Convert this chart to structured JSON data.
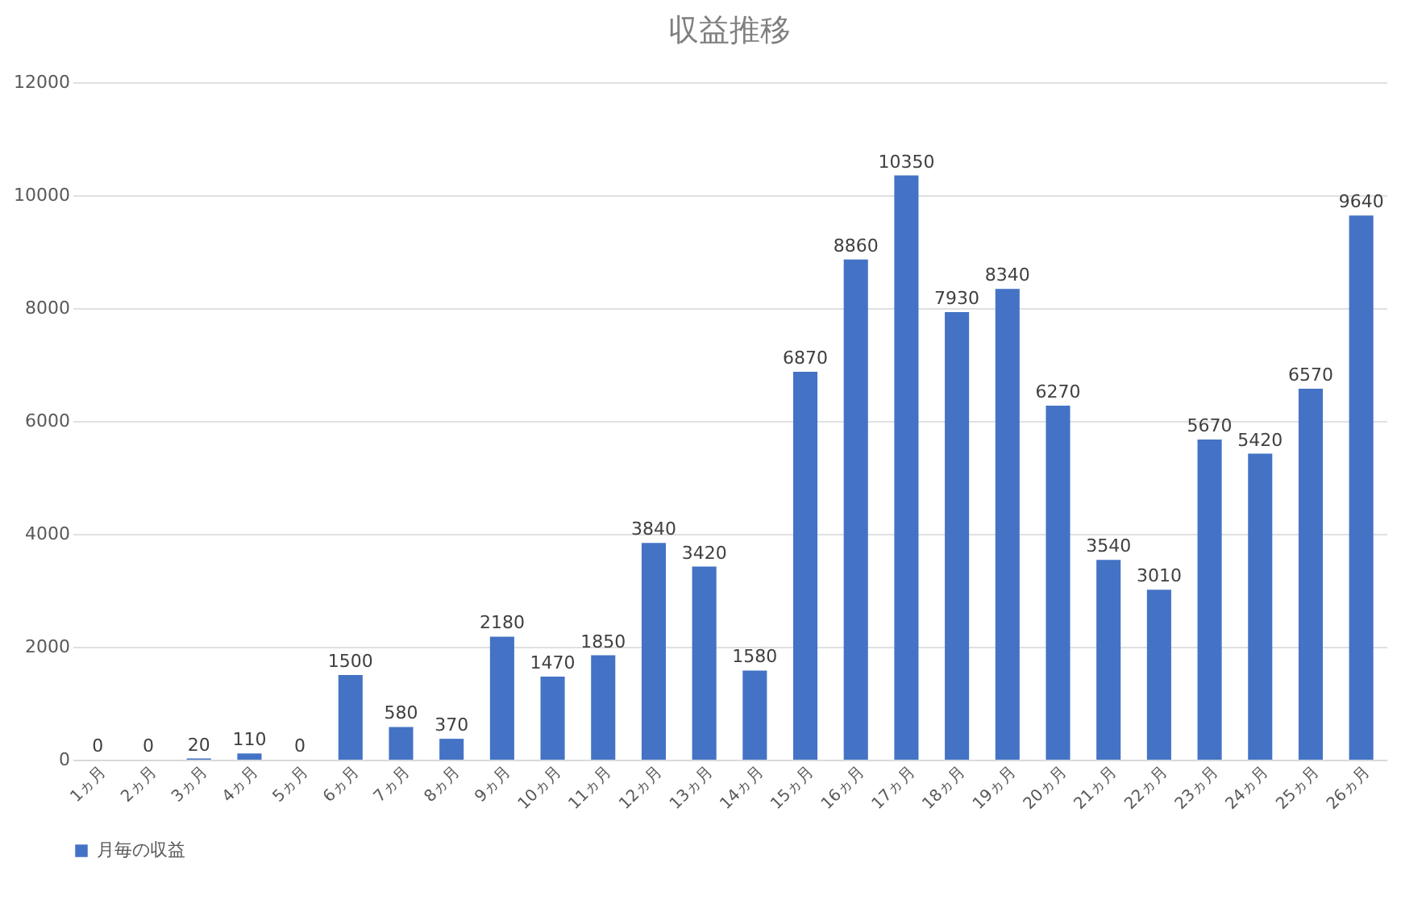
{
  "chart_data": {
    "type": "bar",
    "title": "収益推移",
    "categories": [
      "1ヵ月",
      "2ヵ月",
      "3ヵ月",
      "4ヵ月",
      "5ヵ月",
      "6ヵ月",
      "7ヵ月",
      "8ヵ月",
      "9ヵ月",
      "10ヵ月",
      "11ヵ月",
      "12ヵ月",
      "13ヵ月",
      "14ヵ月",
      "15ヵ月",
      "16ヵ月",
      "17ヵ月",
      "18ヵ月",
      "19ヵ月",
      "20ヵ月",
      "21ヵ月",
      "22ヵ月",
      "23ヵ月",
      "24ヵ月",
      "25ヵ月",
      "26ヵ月"
    ],
    "series": [
      {
        "name": "月毎の収益",
        "color": "#4472c4",
        "values": [
          0,
          0,
          20,
          110,
          0,
          1500,
          580,
          370,
          2180,
          1470,
          1850,
          3840,
          3420,
          1580,
          6870,
          8860,
          10350,
          7930,
          8340,
          6270,
          3540,
          3010,
          5670,
          5420,
          6570,
          9640
        ]
      }
    ],
    "ylim": [
      0,
      12000
    ],
    "yticks": [
      0,
      2000,
      4000,
      6000,
      8000,
      10000,
      12000
    ],
    "grid": "y",
    "legend": "bottom",
    "data_labels": true
  }
}
